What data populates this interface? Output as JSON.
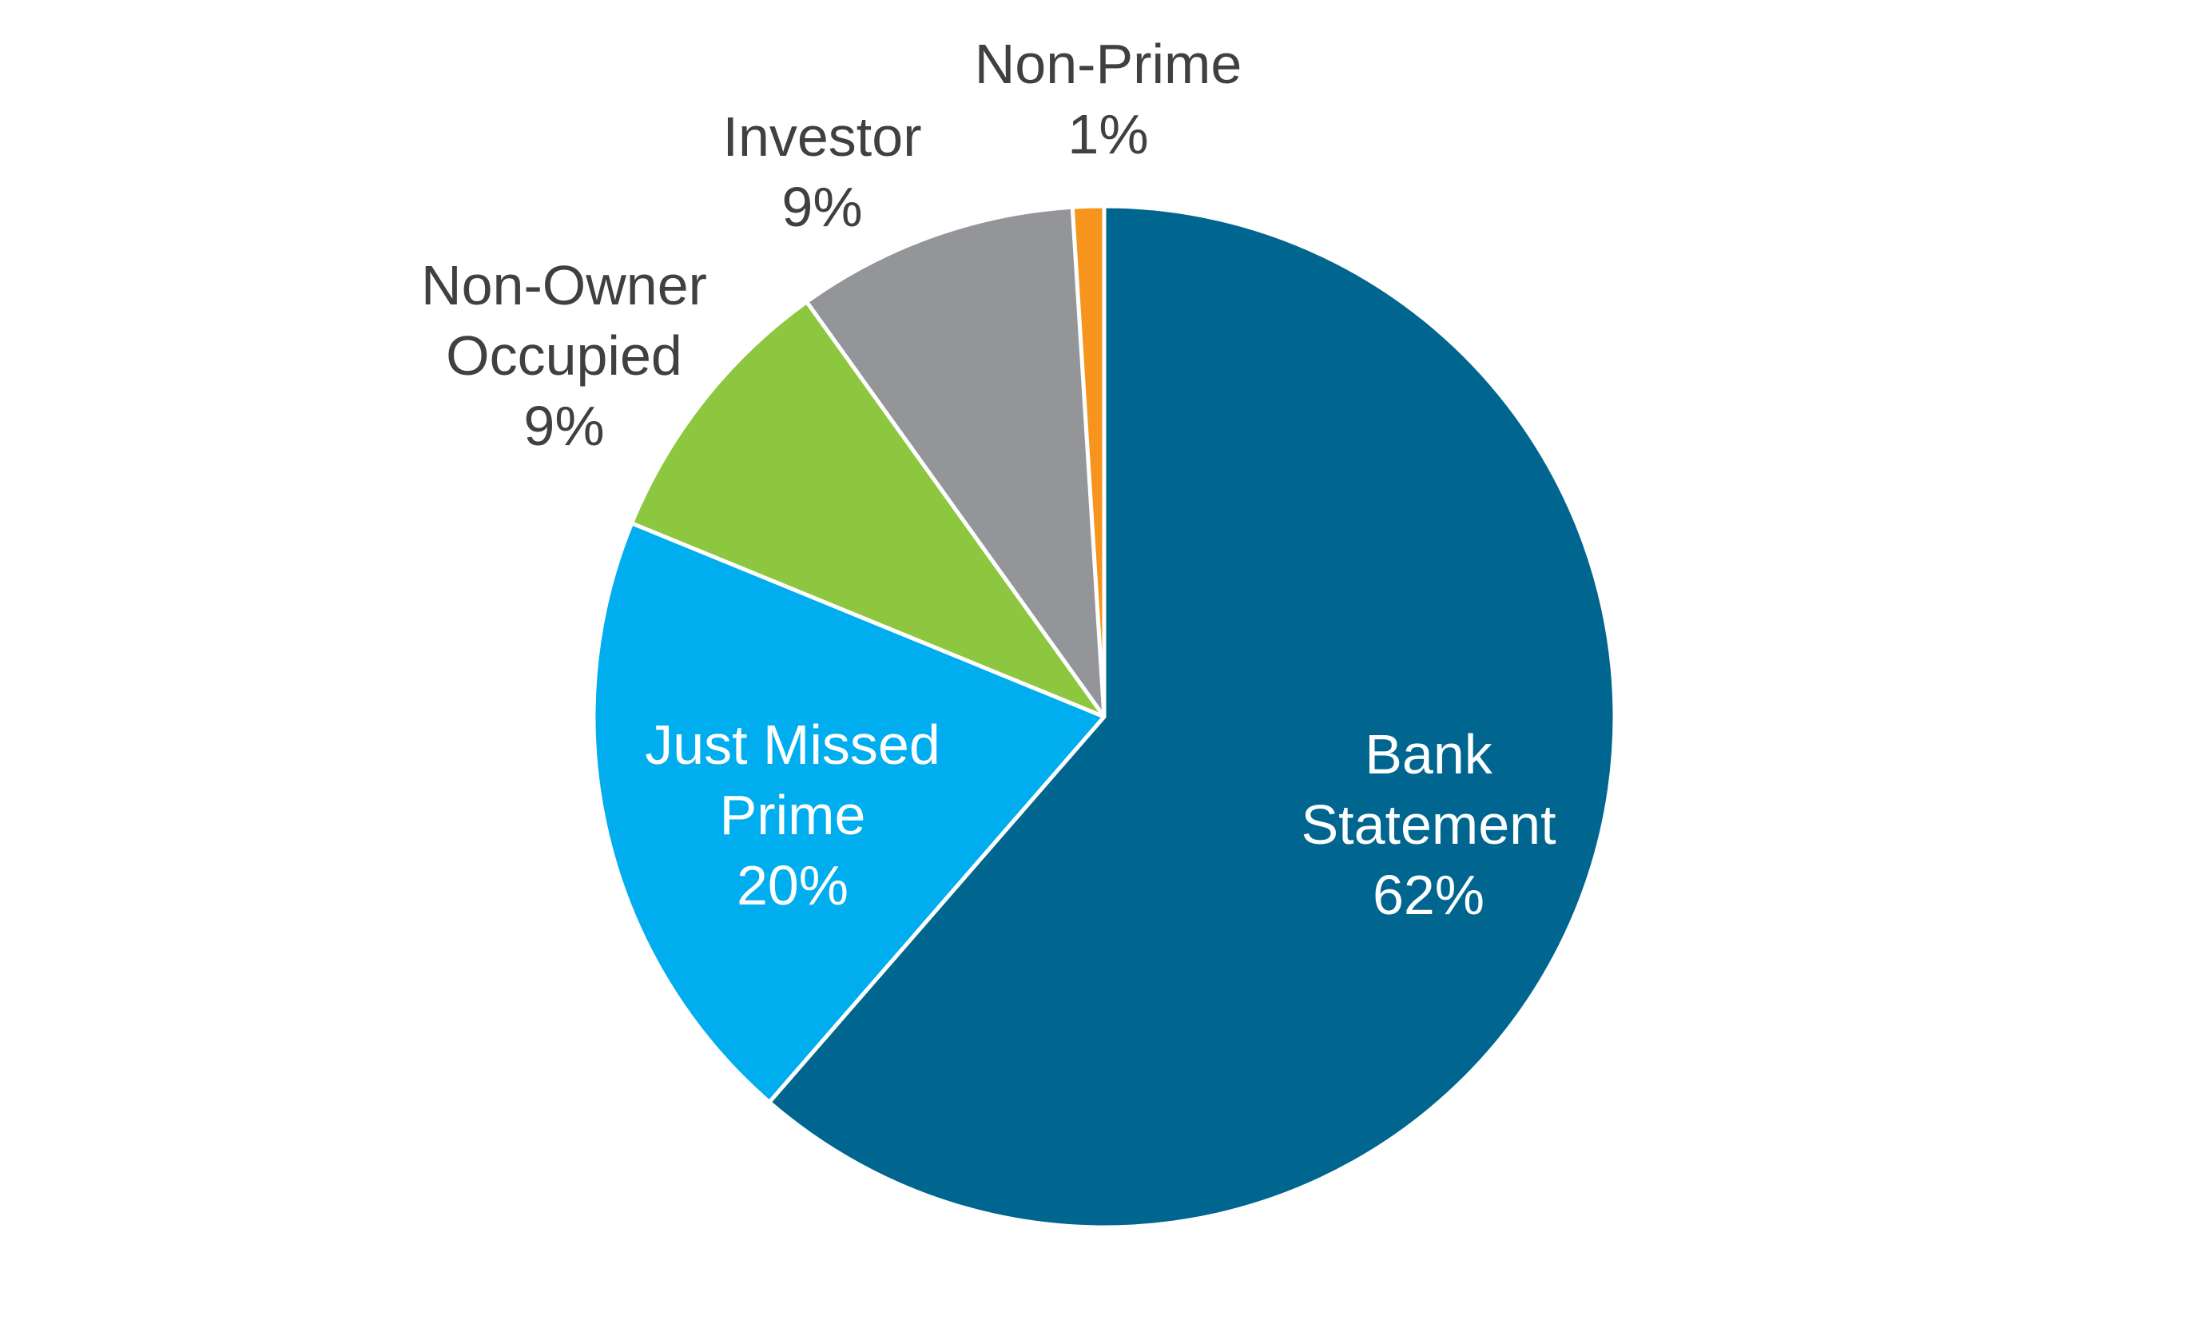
{
  "chart_data": {
    "type": "pie",
    "categories": [
      "Bank Statement",
      "Just Missed Prime",
      "Non-Owner Occupied",
      "Investor",
      "Non-Prime"
    ],
    "values": [
      62,
      20,
      9,
      9,
      1
    ],
    "value_labels": [
      "62%",
      "20%",
      "9%",
      "9%",
      "1%"
    ],
    "colors": [
      "#00668f",
      "#00adee",
      "#8dc63f",
      "#939598",
      "#f7941d"
    ]
  }
}
